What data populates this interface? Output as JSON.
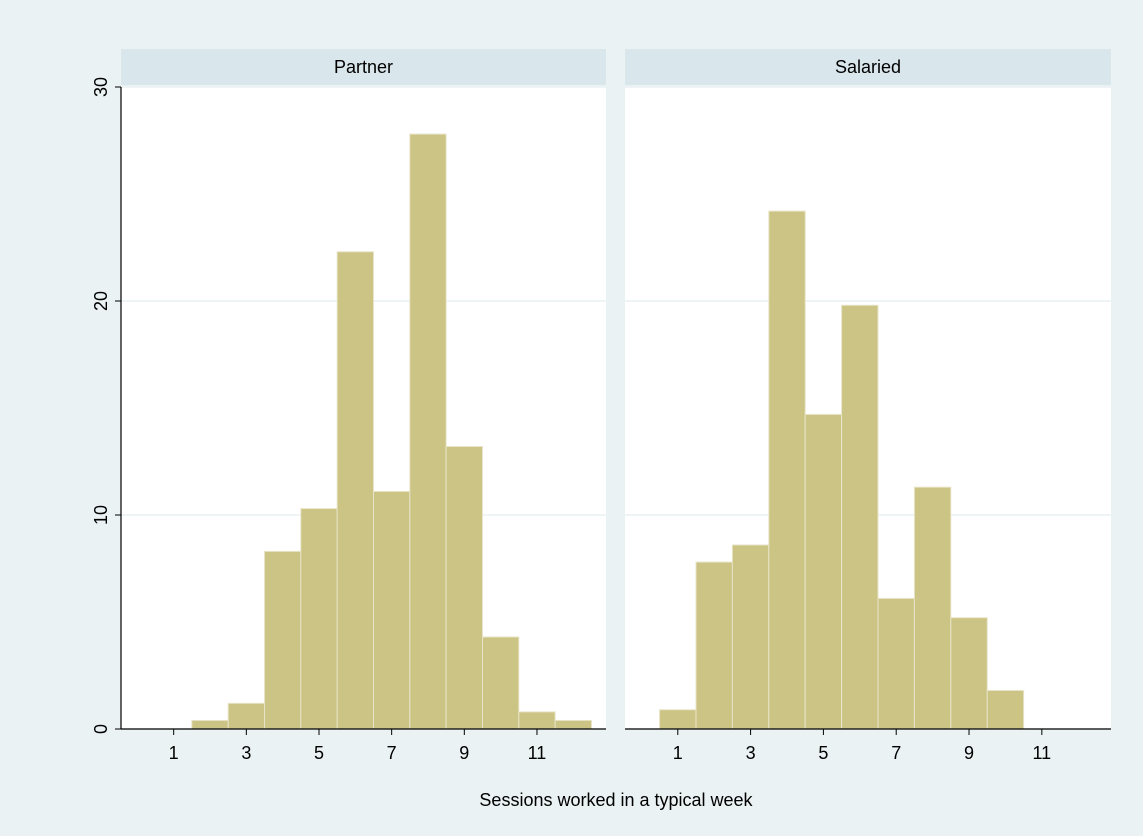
{
  "chart_data": [
    {
      "type": "histogram",
      "title": "Partner",
      "x_label": "Sessions worked in a typical week",
      "bins": [
        1.5,
        2.5,
        3.5,
        4.5,
        5.5,
        6.5,
        7.5,
        8.5,
        9.5,
        10.5,
        11.5,
        12.5
      ],
      "values": [
        0.4,
        1.2,
        8.3,
        10.3,
        22.3,
        11.1,
        27.8,
        13.2,
        4.3,
        0.8,
        0.4
      ],
      "color": "#ccc484",
      "xlim": [
        -0.45,
        12.9
      ],
      "xticks": [
        1,
        3,
        5,
        7,
        9,
        11
      ],
      "ylim": [
        0,
        30
      ],
      "yticks": [
        0,
        10,
        20,
        30
      ],
      "grid": true
    },
    {
      "type": "histogram",
      "title": "Salaried",
      "bins": [
        0.5,
        1.5,
        2.5,
        3.5,
        4.5,
        5.5,
        6.5,
        7.5,
        8.5,
        9.5,
        10.5
      ],
      "values": [
        0.9,
        7.8,
        8.6,
        24.2,
        14.7,
        19.8,
        6.1,
        11.3,
        5.2,
        1.8
      ],
      "color": "#ccc484",
      "xlim": [
        -0.45,
        12.9
      ],
      "xticks": [
        1,
        3,
        5,
        7,
        9,
        11
      ],
      "ylim": [
        0,
        30
      ],
      "yticks": [
        0,
        10,
        20,
        30
      ],
      "grid": true
    }
  ]
}
